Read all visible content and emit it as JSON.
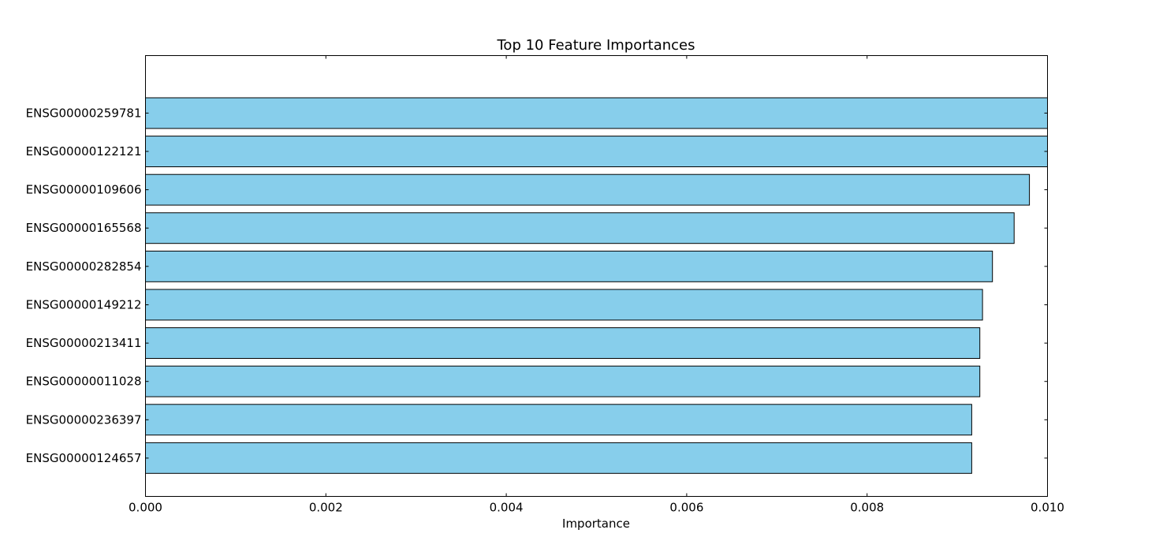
{
  "chart_data": {
    "type": "bar",
    "orientation": "horizontal",
    "title": "Top 10 Feature Importances",
    "xlabel": "Importance",
    "ylabel": "",
    "xlim": [
      0.0,
      0.01
    ],
    "xticks": [
      "0.000",
      "0.002",
      "0.004",
      "0.006",
      "0.008",
      "0.010"
    ],
    "grid": false,
    "bar_color": "#87CEEB",
    "bar_edge_color": "#000000",
    "categories": [
      "ENSG00000259781",
      "ENSG00000122121",
      "ENSG00000109606",
      "ENSG00000165568",
      "ENSG00000282854",
      "ENSG00000149212",
      "ENSG00000213411",
      "ENSG00000011028",
      "ENSG00000236397",
      "ENSG00000124657"
    ],
    "values": [
      0.0102,
      0.0101,
      0.0098,
      0.00963,
      0.00939,
      0.00928,
      0.00925,
      0.00925,
      0.00916,
      0.00916
    ]
  }
}
